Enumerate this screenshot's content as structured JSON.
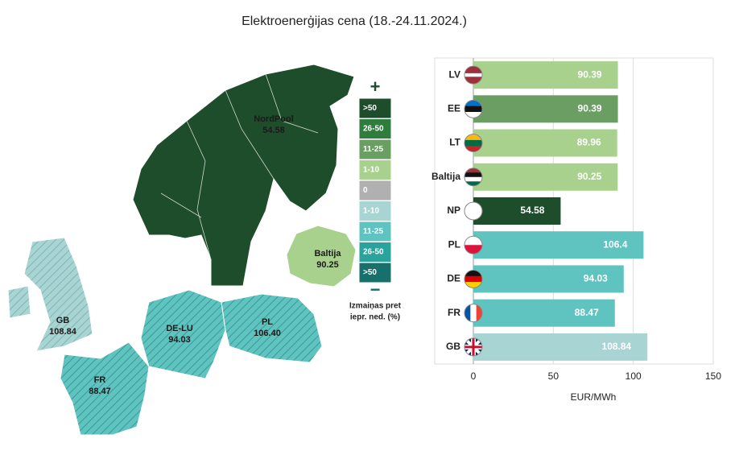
{
  "chart_data": {
    "type": "hbar",
    "title": "Elektroenerģijas cena (18.-24.11.2024.)",
    "categories": [
      "LV",
      "EE",
      "LT",
      "Baltija",
      "NP",
      "PL",
      "DE",
      "FR",
      "GB"
    ],
    "values": [
      90.39,
      90.39,
      89.96,
      90.25,
      54.58,
      106.4,
      94.03,
      88.47,
      108.84
    ],
    "colors": [
      "#a9d18e",
      "#6a9e63",
      "#a9d18e",
      "#a9d18e",
      "#1e4d2b",
      "#5fc3bf",
      "#5fc3bf",
      "#5fc3bf",
      "#a8d5d3"
    ],
    "xlim": [
      0,
      150
    ],
    "xticks": [
      0,
      50,
      100,
      150
    ],
    "xlabel": "EUR/MWh",
    "grid": true
  },
  "map": {
    "regions": [
      {
        "name": "NordPool",
        "value": 54.58
      },
      {
        "name": "Baltija",
        "value": 90.25
      },
      {
        "name": "GB",
        "value": 108.84
      },
      {
        "name": "DE-LU",
        "value": 94.03
      },
      {
        "name": "PL",
        "value": 106.4,
        "value_label": "106.40"
      },
      {
        "name": "FR",
        "value": 88.47
      }
    ]
  },
  "legend": {
    "plus": "+",
    "minus": "−",
    "items": [
      {
        "label": ">50",
        "color": "#1e4d2b"
      },
      {
        "label": "26-50",
        "color": "#2e7d3e"
      },
      {
        "label": "11-25",
        "color": "#6a9e63"
      },
      {
        "label": "1-10",
        "color": "#a9d18e"
      },
      {
        "label": "0",
        "color": "#b0b0b0"
      },
      {
        "label": "1-10",
        "color": "#a8d5d3"
      },
      {
        "label": "11-25",
        "color": "#5fc3bf"
      },
      {
        "label": "26-50",
        "color": "#2aa39d"
      },
      {
        "label": ">50",
        "color": "#17706b"
      }
    ],
    "caption": [
      "Izmaiņas pret",
      "iepr. ned. (%)"
    ]
  }
}
